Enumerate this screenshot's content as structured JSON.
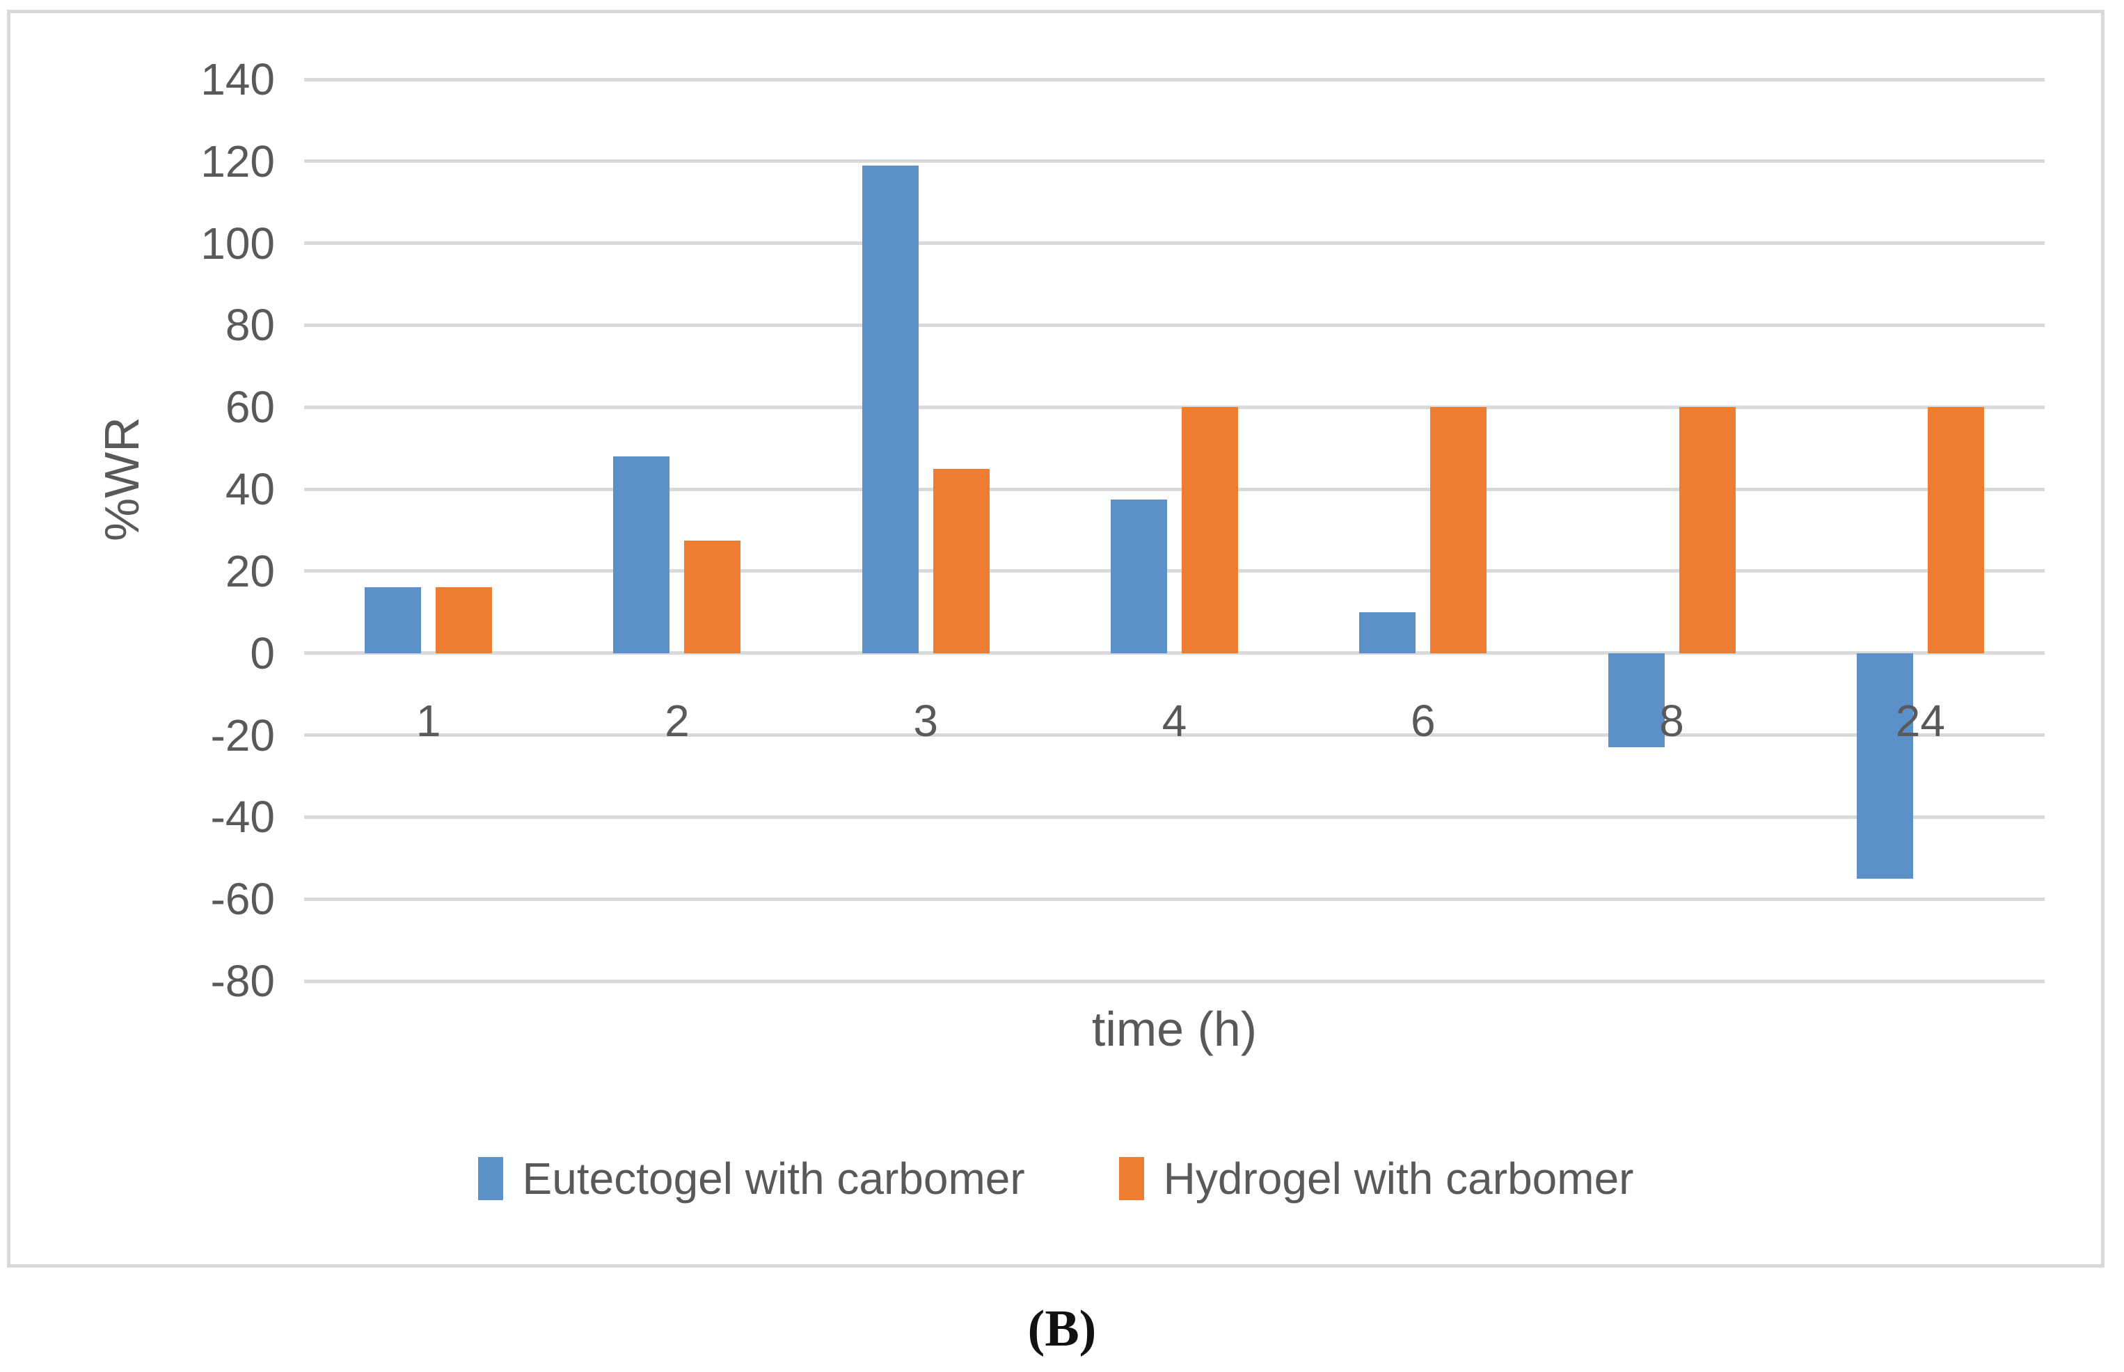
{
  "figure": {
    "caption": "(B)"
  },
  "chart_data": {
    "type": "bar",
    "title": "",
    "xlabel": "time (h)",
    "ylabel": "%WR",
    "categories": [
      "1",
      "2",
      "3",
      "4",
      "6",
      "8",
      "24"
    ],
    "series": [
      {
        "name": "Eutectogel with carbomer",
        "color": "#5B90C8",
        "values": [
          16,
          48,
          119,
          37.5,
          10,
          -23,
          -55
        ]
      },
      {
        "name": "Hydrogel with carbomer",
        "color": "#ED7D31",
        "values": [
          16,
          27.5,
          45,
          60,
          60,
          60,
          60
        ]
      }
    ],
    "ylim": [
      -80,
      140
    ],
    "yticks": [
      140,
      120,
      100,
      80,
      60,
      40,
      20,
      0,
      -20,
      -40,
      -60,
      -80
    ],
    "grid": true,
    "legend_position": "bottom",
    "gridline_color": "#D9D9D9",
    "axis_text_color": "#595959"
  }
}
